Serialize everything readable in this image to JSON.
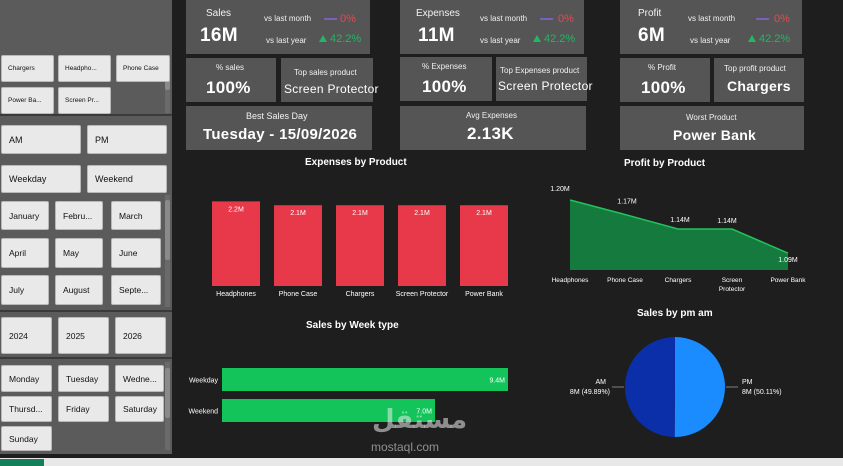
{
  "slicers": {
    "products": [
      "Chargers",
      "Headpho...",
      "Phone Case",
      "Power Ba...",
      "Screen Pr..."
    ],
    "ampm": [
      "AM",
      "PM"
    ],
    "weektype": [
      "Weekday",
      "Weekend"
    ],
    "months": [
      "January",
      "Febru...",
      "March",
      "April",
      "May",
      "June",
      "July",
      "August",
      "Septe..."
    ],
    "years": [
      "2024",
      "2025",
      "2026"
    ],
    "days": [
      "Monday",
      "Tuesday",
      "Wedne...",
      "Thursd...",
      "Friday",
      "Saturday",
      "Sunday"
    ]
  },
  "kpis": {
    "sales": {
      "label": "Sales",
      "value": "16M",
      "vs_month_label": "vs last month",
      "vs_month_value": "0%",
      "vs_year_label": "vs last year",
      "vs_year_value": "42.2%"
    },
    "expenses": {
      "label": "Expenses",
      "value": "11M",
      "vs_month_label": "vs last month",
      "vs_month_value": "0%",
      "vs_year_label": "vs last year",
      "vs_year_value": "42.2%"
    },
    "profit": {
      "label": "Profit",
      "value": "6M",
      "vs_month_label": "vs last month",
      "vs_month_value": "0%",
      "vs_year_label": "vs last year",
      "vs_year_value": "42.2%"
    },
    "pct_sales": {
      "label": "% sales",
      "value": "100%"
    },
    "top_sales_product": {
      "label": "Top sales product",
      "value": "Screen Protector"
    },
    "pct_expenses": {
      "label": "% Expenses",
      "value": "100%"
    },
    "top_expenses_product": {
      "label": "Top Expenses product",
      "value": "Screen Protector"
    },
    "pct_profit": {
      "label": "% Profit",
      "value": "100%"
    },
    "top_profit_product": {
      "label": "Top profit product",
      "value": "Chargers"
    },
    "best_sales_day": {
      "label": "Best Sales Day",
      "value": "Tuesday - 15/09/2026"
    },
    "avg_expenses": {
      "label": "Avg Expenses",
      "value": "2.13K"
    },
    "worst_product": {
      "label": "Worst Product",
      "value": "Power Bank"
    }
  },
  "colors": {
    "bar_red": "#e8394a",
    "bar_green": "#12c45a",
    "area_green": "#157a3e",
    "line_green": "#22c25c",
    "pie_am": "#0a2fa8",
    "pie_pm": "#1a8cff",
    "up": "#21b764",
    "down": "#e8484f"
  },
  "watermark": {
    "arabic": "مستقل",
    "latin": "mostaql.com"
  },
  "chart_data": [
    {
      "type": "bar",
      "title": "Expenses by Product",
      "categories": [
        "Headphones",
        "Phone Case",
        "Chargers",
        "Screen Protector",
        "Power Bank"
      ],
      "values": [
        2.2,
        2.1,
        2.1,
        2.1,
        2.1
      ],
      "labels": [
        "2.2M",
        "2.1M",
        "2.1M",
        "2.1M",
        "2.1M"
      ],
      "ylim": [
        0,
        2.6
      ]
    },
    {
      "type": "area",
      "title": "Profit by Product",
      "categories": [
        "Headphones",
        "Phone Case",
        "Chargers",
        "Screen Protector",
        "Power Bank"
      ],
      "category_lines": [
        [
          "Headphones"
        ],
        [
          "Phone Case"
        ],
        [
          "Chargers"
        ],
        [
          "Screen",
          "Protector"
        ],
        [
          "Power Bank"
        ]
      ],
      "values": [
        1.2,
        1.17,
        1.14,
        1.14,
        1.09
      ],
      "labels": [
        "1.20M",
        "1.17M",
        "1.14M",
        "1.14M",
        "1.09M"
      ],
      "ylim": [
        0.9,
        1.2
      ]
    },
    {
      "type": "bar",
      "orientation": "horizontal",
      "title": "Sales by Week type",
      "categories": [
        "Weekday",
        "Weekend"
      ],
      "values": [
        9.4,
        7.0
      ],
      "labels": [
        "9.4M",
        "7.0M"
      ],
      "xlim": [
        0,
        9.4
      ]
    },
    {
      "type": "pie",
      "title": "Sales by pm am",
      "categories": [
        "AM",
        "PM"
      ],
      "values": [
        49.89,
        50.11
      ],
      "value_labels": [
        "8M (49.89%)",
        "8M (50.11%)"
      ]
    }
  ]
}
